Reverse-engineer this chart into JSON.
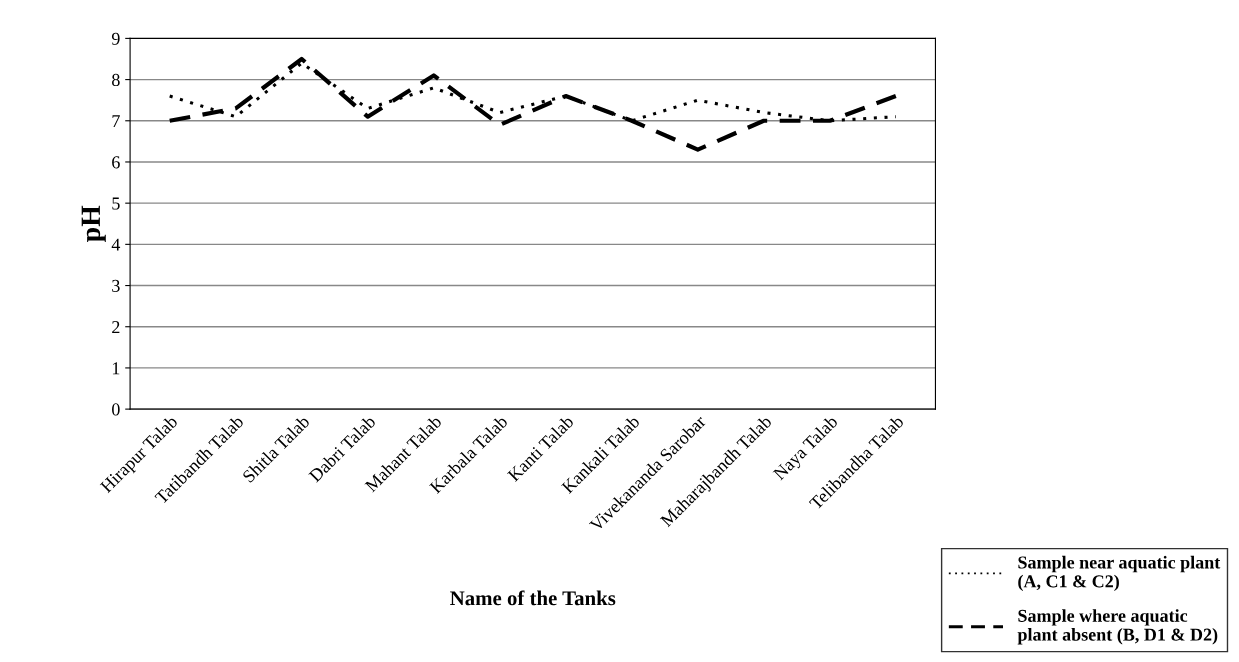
{
  "chart_data": {
    "type": "line",
    "xlabel": "Name of the Tanks",
    "ylabel": "pH",
    "categories": [
      "Hirapur Talab",
      "Tatibandh Talab",
      "Shitla Talab",
      "Dabri Talab",
      "Mahant Talab",
      "Karbala Talab",
      "Kanti Talab",
      "Kankali Talab",
      "Vivekananda Sarobar",
      "Maharajbandh Talab",
      "Naya Talab",
      "Telibandha Talab"
    ],
    "series": [
      {
        "name": "Sample near aquatic plant\n(A, C1 & C2)",
        "color": "#000000",
        "line_style": "dotted",
        "values": [
          7.6,
          7.1,
          8.4,
          7.3,
          7.8,
          7.2,
          7.6,
          7.0,
          7.5,
          7.2,
          7.0,
          7.1
        ]
      },
      {
        "name": "Sample where aquatic\nplant absent (B, D1 & D2)",
        "color": "#000000",
        "line_style": "dashed",
        "values": [
          7.0,
          7.3,
          8.5,
          7.1,
          8.1,
          6.9,
          7.6,
          7.0,
          6.3,
          7.0,
          7.0,
          7.6
        ]
      }
    ],
    "ylim": [
      0,
      9
    ],
    "yticks": [
      0,
      1,
      2,
      3,
      4,
      5,
      6,
      7,
      8,
      9
    ],
    "grid": "y",
    "legend": "bottom right",
    "marker": "none"
  }
}
